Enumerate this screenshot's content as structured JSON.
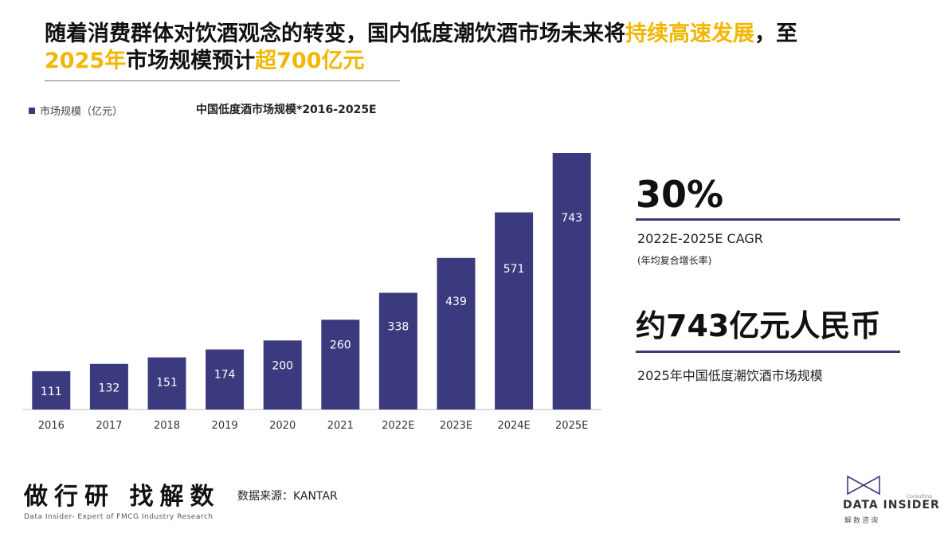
{
  "headline": {
    "part1": "随着消费群体对饮酒观念的转变，国内低度潮饮酒市场未来将",
    "highlight1": "持续高速发展",
    "part2": "，至",
    "highlight2": "2025年",
    "part3": "市场规模预计",
    "highlight3": "超700亿元"
  },
  "legend": {
    "label": "市场规模（亿元）"
  },
  "chart_data": {
    "type": "bar",
    "title": "中国低度酒市场规模*2016-2025E",
    "categories": [
      "2016",
      "2017",
      "2018",
      "2019",
      "2020",
      "2021",
      "2022E",
      "2023E",
      "2024E",
      "2025E"
    ],
    "series": [
      {
        "name": "市场规模（亿元）",
        "values": [
          111,
          132,
          151,
          174,
          200,
          260,
          338,
          439,
          571,
          743
        ]
      }
    ],
    "ylim": [
      0,
      760
    ],
    "grid": false,
    "legend_position": "top-left",
    "bar_color": "#3b3a7e",
    "label_color": "#ffffff"
  },
  "kpis": {
    "cagr_value": "30%",
    "cagr_label": "2022E-2025E CAGR",
    "cagr_note": "(年均复合增长率)",
    "size_value": "约743亿元人民币",
    "size_label": "2025年中国低度潮饮酒市场规模"
  },
  "footer": {
    "brand": "做行研 找解数",
    "brand_sub": "Data Insider- Expert of FMCG Industry Research",
    "source": "数据来源：KANTAR"
  },
  "logo": {
    "name": "DATA INSIDER",
    "cn": "解数咨询",
    "tag": "Consulting"
  },
  "colors": {
    "accent": "#f2b705",
    "bar": "#3b3a7e"
  }
}
